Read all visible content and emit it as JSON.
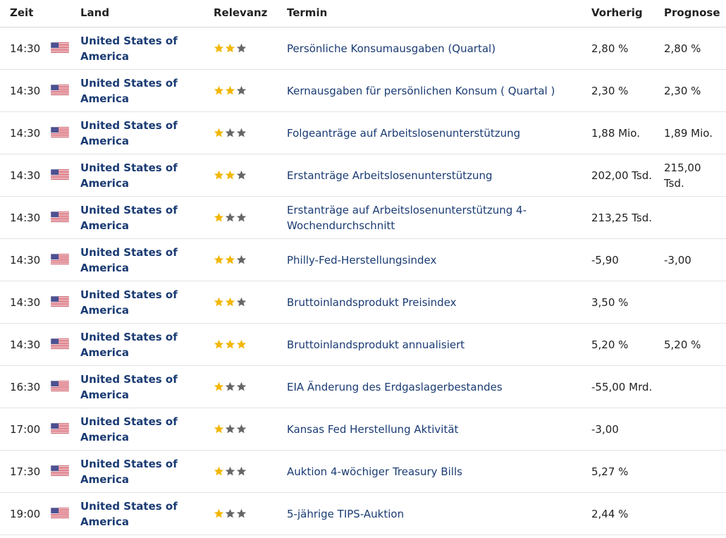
{
  "columns": {
    "time": "Zeit",
    "country": "Land",
    "relevance": "Relevanz",
    "event": "Termin",
    "previous": "Vorherig",
    "forecast": "Prognose"
  },
  "colors": {
    "star_filled": "#f2b705",
    "star_empty": "#666666",
    "link": "#1a3b73"
  },
  "icons": {
    "flag": "us-flag-icon",
    "star": "star-icon"
  },
  "rows": [
    {
      "time": "14:30",
      "country": "United States of America",
      "relevance": 2,
      "event": "Persönliche Konsumausgaben (Quartal)",
      "previous": "2,80 %",
      "forecast": "2,80 %"
    },
    {
      "time": "14:30",
      "country": "United States of America",
      "relevance": 2,
      "event": "Kernausgaben für persönlichen Konsum ( Quartal )",
      "previous": "2,30 %",
      "forecast": "2,30 %"
    },
    {
      "time": "14:30",
      "country": "United States of America",
      "relevance": 1,
      "event": "Folgeanträge auf Arbeitslosenunterstützung",
      "previous": "1,88 Mio.",
      "forecast": "1,89 Mio."
    },
    {
      "time": "14:30",
      "country": "United States of America",
      "relevance": 2,
      "event": "Erstanträge Arbeitslosenunterstützung",
      "previous": "202,00 Tsd.",
      "forecast": "215,00 Tsd."
    },
    {
      "time": "14:30",
      "country": "United States of America",
      "relevance": 1,
      "event": "Erstanträge auf Arbeitslosenunterstützung 4-Wochendurchschnitt",
      "previous": "213,25 Tsd.",
      "forecast": ""
    },
    {
      "time": "14:30",
      "country": "United States of America",
      "relevance": 2,
      "event": "Philly-Fed-Herstellungsindex",
      "previous": "-5,90",
      "forecast": "-3,00"
    },
    {
      "time": "14:30",
      "country": "United States of America",
      "relevance": 2,
      "event": "Bruttoinlandsprodukt Preisindex",
      "previous": "3,50 %",
      "forecast": ""
    },
    {
      "time": "14:30",
      "country": "United States of America",
      "relevance": 3,
      "event": "Bruttoinlandsprodukt annualisiert",
      "previous": "5,20 %",
      "forecast": "5,20 %"
    },
    {
      "time": "16:30",
      "country": "United States of America",
      "relevance": 1,
      "event": "EIA Änderung des Erdgaslagerbestandes",
      "previous": "-55,00 Mrd.",
      "forecast": ""
    },
    {
      "time": "17:00",
      "country": "United States of America",
      "relevance": 1,
      "event": "Kansas Fed Herstellung Aktivität",
      "previous": "-3,00",
      "forecast": ""
    },
    {
      "time": "17:30",
      "country": "United States of America",
      "relevance": 1,
      "event": "Auktion 4-wöchiger Treasury Bills",
      "previous": "5,27 %",
      "forecast": ""
    },
    {
      "time": "19:00",
      "country": "United States of America",
      "relevance": 1,
      "event": "5-jährige TIPS-Auktion",
      "previous": "2,44 %",
      "forecast": ""
    }
  ]
}
